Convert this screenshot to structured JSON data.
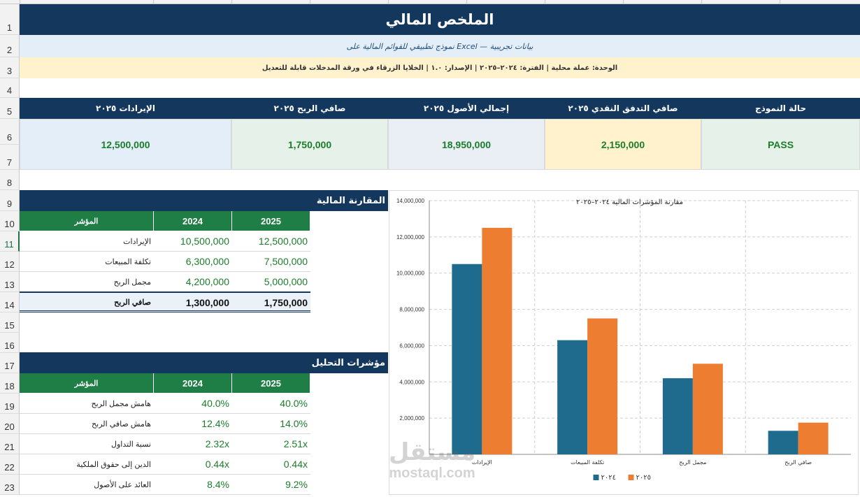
{
  "rows": [
    "1",
    "2",
    "3",
    "4",
    "5",
    "6",
    "7",
    "8",
    "9",
    "10",
    "11",
    "12",
    "13",
    "14",
    "15",
    "16",
    "17",
    "18",
    "19",
    "20",
    "21",
    "22",
    "23"
  ],
  "title": "الملخص المالي",
  "subtitle": "نموذج تطبيقي للقوائم المالية على Excel — بيانات تجريبية",
  "info": "الوحدة: عملة محلية | الفترة: ٢٠٢٤–٢٠٢٥ | الإصدار: ١.٠ | الخلايا الزرقاء في ورقة المدخلات قابلة للتعديل",
  "kpis": [
    {
      "label": "الإيرادات ٢٠٢٥",
      "value": "12,500,000",
      "bg": "#e4eef8"
    },
    {
      "label": "صافي الربح ٢٠٢٥",
      "value": "1,750,000",
      "bg": "#e6f2e9"
    },
    {
      "label": "إجمالي الأصول ٢٠٢٥",
      "value": "18,950,000",
      "bg": "#eaeef5"
    },
    {
      "label": "صافي التدفق النقدي ٢٠٢٥",
      "value": "2,150,000",
      "bg": "#fff2cc"
    },
    {
      "label": "حالة النموذج",
      "value": "PASS",
      "bg": "#e6f2e9"
    }
  ],
  "comparison": {
    "heading": "المقارنة المالية",
    "col_label": "المؤشر",
    "col_2024": "2024",
    "col_2025": "2025",
    "rows": [
      {
        "label": "الإيرادات",
        "v2024": "10,500,000",
        "v2025": "12,500,000"
      },
      {
        "label": "تكلفة المبيعات",
        "v2024": "6,300,000",
        "v2025": "7,500,000"
      },
      {
        "label": "مجمل الربح",
        "v2024": "4,200,000",
        "v2025": "5,000,000"
      }
    ],
    "total": {
      "label": "صافي الربح",
      "v2024": "1,300,000",
      "v2025": "1,750,000"
    }
  },
  "analysis": {
    "heading": "مؤشرات التحليل",
    "col_label": "المؤشر",
    "col_2024": "2024",
    "col_2025": "2025",
    "rows": [
      {
        "label": "هامش مجمل الربح",
        "v2024": "40.0%",
        "v2025": "40.0%"
      },
      {
        "label": "هامش صافي الربح",
        "v2024": "12.4%",
        "v2025": "14.0%"
      },
      {
        "label": "نسبة التداول",
        "v2024": "2.32x",
        "v2025": "2.51x"
      },
      {
        "label": "الدين إلى حقوق الملكية",
        "v2024": "0.44x",
        "v2025": "0.44x"
      },
      {
        "label": "العائد على الأصول",
        "v2024": "8.4%",
        "v2025": "9.2%"
      }
    ]
  },
  "chart_data": {
    "type": "bar",
    "title": "مقارنة المؤشرات المالية ٢٠٢٤–٢٠٢٥",
    "categories": [
      "الإيرادات",
      "تكلفة المبيعات",
      "مجمل الربح",
      "صافي الربح"
    ],
    "series": [
      {
        "name": "٢٠٢٤",
        "values": [
          10500000,
          6300000,
          4200000,
          1300000
        ],
        "color": "#1f6b8e"
      },
      {
        "name": "٢٠٢٥",
        "values": [
          12500000,
          7500000,
          5000000,
          1750000
        ],
        "color": "#ed7d31"
      }
    ],
    "yticks": [
      "2,000,000",
      "4,000,000",
      "6,000,000",
      "8,000,000",
      "10,000,000",
      "12,000,000",
      "14,000,000"
    ],
    "ylim": [
      0,
      14000000
    ],
    "grid": true,
    "legend": "bottom"
  },
  "watermark": {
    "brand": "مستقل",
    "domain": "mostaql.com"
  },
  "colors": {
    "navy": "#14375e",
    "green_header": "#1e7e45",
    "value_green": "#1b7d2a"
  }
}
